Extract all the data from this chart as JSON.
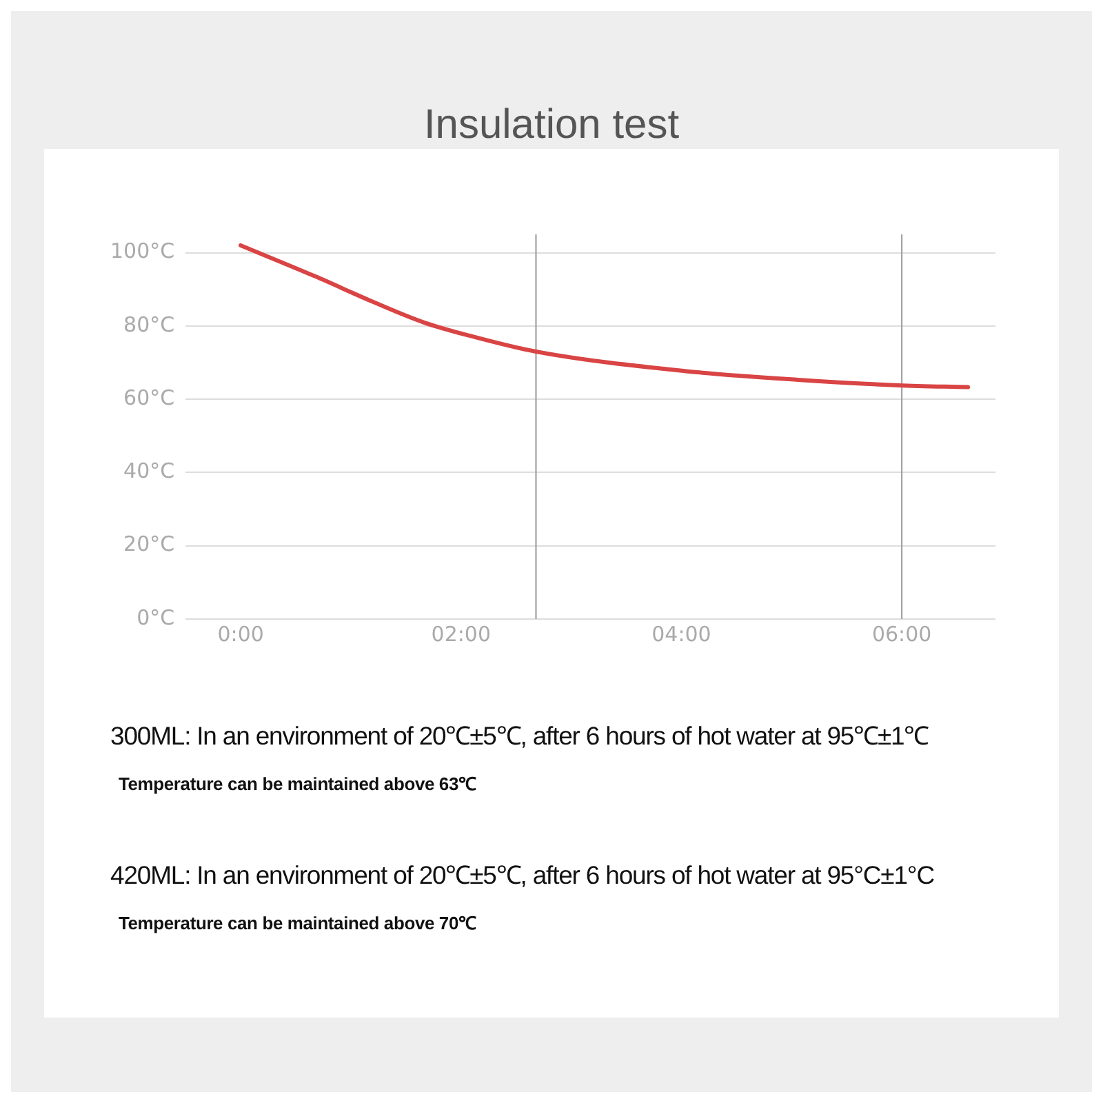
{
  "chart_data": {
    "type": "line",
    "title": "Insulation test",
    "series": [
      {
        "color": "#d94444",
        "x": [
          0,
          0.68,
          1.2,
          1.66,
          2.07,
          2.68,
          4.03,
          5.06,
          5.97,
          6.6
        ],
        "values": [
          102,
          93.5,
          86.6,
          81,
          77.4,
          73,
          67.7,
          65.3,
          63.8,
          63.3
        ]
      }
    ],
    "xlim": [
      -0.5,
      6.85
    ],
    "xticks": [
      {
        "value": 0,
        "label": "0:00"
      },
      {
        "value": 2,
        "label": "02:00"
      },
      {
        "value": 4,
        "label": "04:00"
      },
      {
        "value": 6,
        "label": "06:00"
      }
    ],
    "ylim": [
      0,
      105
    ],
    "yticks": [
      {
        "value": 0,
        "label": "0°C"
      },
      {
        "value": 20,
        "label": "20°C"
      },
      {
        "value": 40,
        "label": "40°C"
      },
      {
        "value": 60,
        "label": "60°C"
      },
      {
        "value": 80,
        "label": "80°C"
      },
      {
        "value": 100,
        "label": "100°C"
      }
    ],
    "grid": "y",
    "legend": false,
    "marker": "none",
    "line_style": "solid",
    "ref_lines": [
      {
        "axis": "x",
        "value": 2.68,
        "color": "#999999"
      },
      {
        "axis": "x",
        "value": 6,
        "color": "#999999"
      }
    ],
    "annotations": [
      "300ML: In an environment of 20℃±5℃, after 6 hours of hot water at 95℃±1℃",
      "Temperature can be maintained above 63℃",
      "420ML: In an environment of 20℃±5℃, after 6 hours of hot water at 95°C±1°C",
      "Temperature can be maintained above 70℃"
    ]
  }
}
